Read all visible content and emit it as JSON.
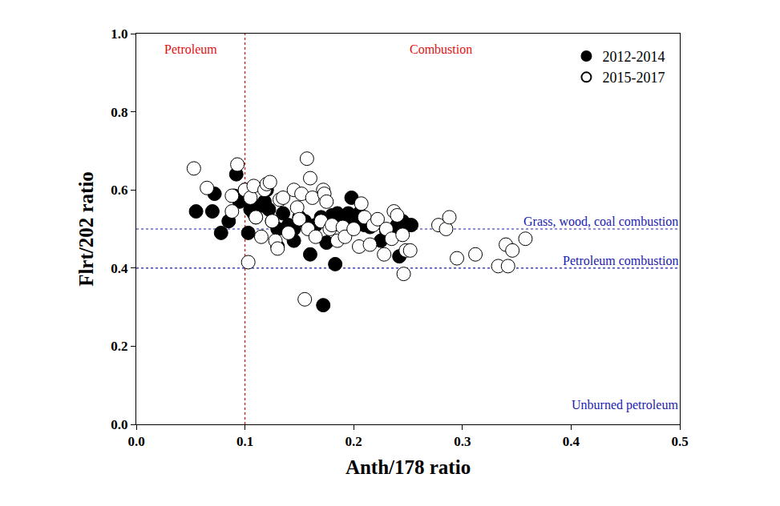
{
  "chart_data": {
    "type": "scatter",
    "x_label": "Anth/178 ratio",
    "y_label": "Flrt/202 ratio",
    "xlim": [
      0,
      0.5
    ],
    "xticks": [
      {
        "value": 0,
        "label": "0.0"
      },
      0.1,
      0.2,
      0.3,
      0.4,
      0.5
    ],
    "ylim": [
      0,
      1
    ],
    "yticks": [
      {
        "value": 0,
        "label": "0.0"
      },
      0.2,
      0.4,
      0.6,
      0.8,
      {
        "value": 1,
        "label": "1.0"
      }
    ],
    "grid": false,
    "legend": "top right",
    "series": [
      {
        "name": "2012-2014",
        "color": "#000000",
        "marker": "filled",
        "x": [
          0.055,
          0.07,
          0.072,
          0.078,
          0.085,
          0.09,
          0.092,
          0.095,
          0.1,
          0.103,
          0.105,
          0.11,
          0.115,
          0.12,
          0.122,
          0.125,
          0.13,
          0.13,
          0.135,
          0.14,
          0.145,
          0.15,
          0.155,
          0.16,
          0.165,
          0.17,
          0.172,
          0.175,
          0.18,
          0.183,
          0.185,
          0.19,
          0.195,
          0.198,
          0.2,
          0.205,
          0.21,
          0.215,
          0.22,
          0.225,
          0.23,
          0.235,
          0.24,
          0.242,
          0.245,
          0.25,
          0.253,
          0.118,
          0.108,
          0.145
        ],
        "values": [
          0.545,
          0.545,
          0.59,
          0.49,
          0.52,
          0.585,
          0.64,
          0.57,
          0.6,
          0.49,
          0.55,
          0.53,
          0.56,
          0.6,
          0.55,
          0.52,
          0.5,
          0.455,
          0.54,
          0.51,
          0.47,
          0.53,
          0.52,
          0.435,
          0.51,
          0.53,
          0.305,
          0.465,
          0.535,
          0.41,
          0.54,
          0.53,
          0.54,
          0.58,
          0.52,
          0.54,
          0.51,
          0.505,
          0.515,
          0.47,
          0.495,
          0.48,
          0.51,
          0.43,
          0.52,
          0.51,
          0.51,
          0.57,
          0.54,
          0.5
        ]
      },
      {
        "name": "2015-2017",
        "color": "#000000",
        "marker": "open",
        "x": [
          0.053,
          0.065,
          0.088,
          0.088,
          0.093,
          0.1,
          0.103,
          0.105,
          0.108,
          0.11,
          0.115,
          0.118,
          0.12,
          0.123,
          0.125,
          0.128,
          0.13,
          0.132,
          0.135,
          0.14,
          0.145,
          0.148,
          0.15,
          0.152,
          0.155,
          0.157,
          0.158,
          0.16,
          0.162,
          0.165,
          0.17,
          0.172,
          0.173,
          0.175,
          0.178,
          0.18,
          0.185,
          0.19,
          0.192,
          0.2,
          0.205,
          0.207,
          0.21,
          0.215,
          0.218,
          0.222,
          0.228,
          0.23,
          0.235,
          0.237,
          0.24,
          0.245,
          0.246,
          0.248,
          0.252,
          0.278,
          0.285,
          0.288,
          0.295,
          0.312,
          0.333,
          0.34,
          0.342,
          0.346,
          0.358
        ],
        "values": [
          0.655,
          0.605,
          0.585,
          0.545,
          0.665,
          0.6,
          0.415,
          0.58,
          0.61,
          0.53,
          0.48,
          0.6,
          0.615,
          0.62,
          0.52,
          0.47,
          0.45,
          0.575,
          0.58,
          0.49,
          0.6,
          0.555,
          0.525,
          0.59,
          0.32,
          0.68,
          0.5,
          0.63,
          0.58,
          0.48,
          0.52,
          0.6,
          0.59,
          0.57,
          0.5,
          0.51,
          0.47,
          0.505,
          0.48,
          0.5,
          0.455,
          0.565,
          0.53,
          0.46,
          0.51,
          0.525,
          0.435,
          0.5,
          0.475,
          0.545,
          0.535,
          0.485,
          0.385,
          0.445,
          0.445,
          0.51,
          0.5,
          0.53,
          0.425,
          0.435,
          0.405,
          0.46,
          0.405,
          0.445,
          0.475
        ]
      }
    ],
    "reference_lines": [
      {
        "axis": "x",
        "value": 0.1,
        "color": "#d01010",
        "line_style": "dotted"
      },
      {
        "axis": "y",
        "value": 0.5,
        "color": "#1a1ab0",
        "line_style": "dotted"
      },
      {
        "axis": "y",
        "value": 0.4,
        "color": "#1a1ab0",
        "line_style": "dotted"
      }
    ],
    "annotations": [
      {
        "text": "Petroleum",
        "x": 0.05,
        "y": 0.96,
        "color": "#e01010"
      },
      {
        "text": "Combustion",
        "x": 0.28,
        "y": 0.96,
        "color": "#e01010"
      },
      {
        "text": "Grass, wood, coal combustion",
        "x": 0.5,
        "y": 0.52,
        "color": "#1a1ab0"
      },
      {
        "text": "Petroleum combustion",
        "x": 0.5,
        "y": 0.42,
        "color": "#1a1ab0"
      },
      {
        "text": "Unburned petroleum",
        "x": 0.5,
        "y": 0.05,
        "color": "#1a1ab0"
      }
    ]
  }
}
